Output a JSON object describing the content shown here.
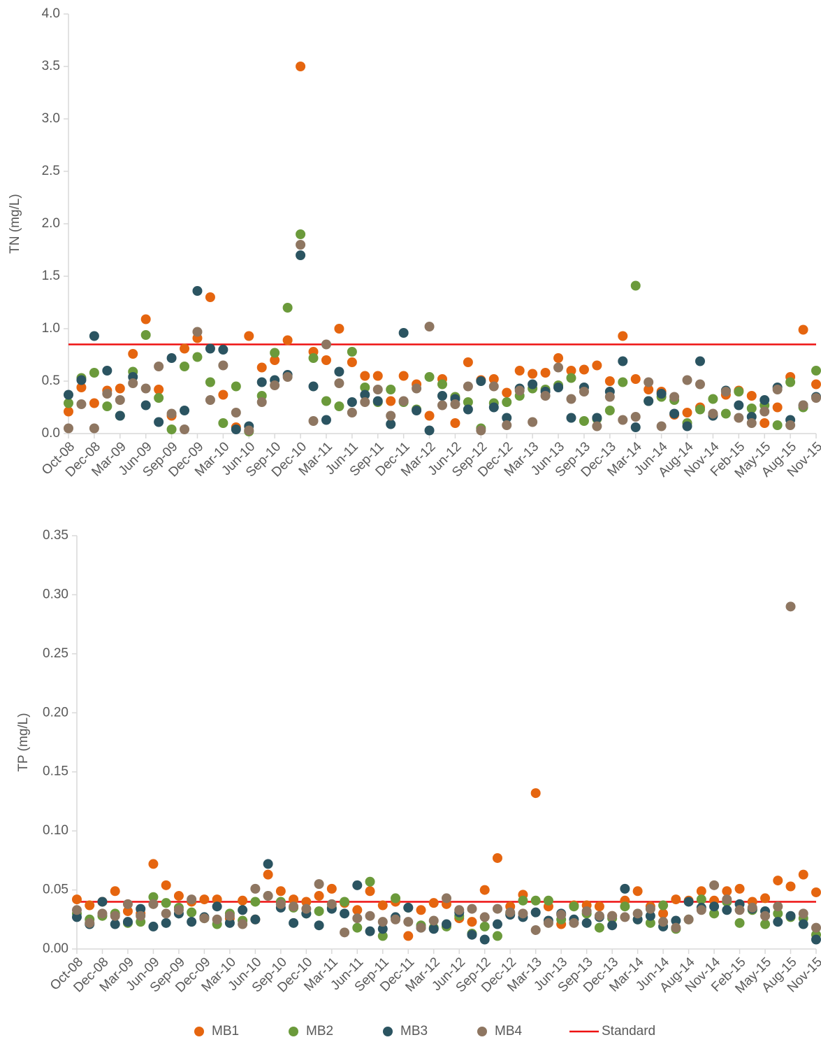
{
  "chart_data": [
    {
      "type": "scatter",
      "y_label": "TN (mg/L)",
      "categories": [
        "Oct-08",
        null,
        "Dec-08",
        null,
        "Mar-09",
        null,
        "Jun-09",
        null,
        "Sep-09",
        null,
        "Dec-09",
        null,
        "Mar-10",
        null,
        "Jun-10",
        null,
        "Sep-10",
        null,
        "Dec-10",
        null,
        "Mar-11",
        null,
        "Jun-11",
        null,
        "Sep-11",
        null,
        "Dec-11",
        null,
        "Mar-12",
        null,
        "Jun-12",
        null,
        "Sep-12",
        null,
        "Dec-12",
        null,
        "Mar-13",
        null,
        "Jun-13",
        null,
        "Sep-13",
        null,
        "Dec-13",
        null,
        "Mar-14",
        null,
        "Jun-14",
        null,
        "Aug-14",
        null,
        "Nov-14",
        null,
        "Feb-15",
        null,
        "May-15",
        null,
        "Aug-15",
        null,
        "Nov-15"
      ],
      "ylim": [
        0,
        4
      ],
      "yticks": [
        {
          "value": 0,
          "label": "0.0"
        },
        0.5,
        {
          "value": 1,
          "label": "1.0"
        },
        1.5,
        {
          "value": 2,
          "label": "2.0"
        },
        2.5,
        {
          "value": 3,
          "label": "3.0"
        },
        3.5,
        {
          "value": 4,
          "label": "4.0"
        }
      ],
      "standard": {
        "name": "Standard",
        "value": 0.85,
        "color": "#ee1111"
      },
      "series": [
        {
          "name": "MB1",
          "color": "#e5650f",
          "values": [
            0.21,
            0.44,
            0.29,
            0.41,
            0.43,
            0.76,
            1.09,
            0.42,
            0.17,
            0.81,
            0.91,
            1.3,
            0.37,
            0.06,
            0.93,
            0.63,
            0.7,
            0.89,
            3.5,
            0.78,
            0.7,
            1.0,
            0.68,
            0.55,
            0.55,
            0.31,
            0.55,
            0.47,
            0.17,
            0.52,
            0.1,
            0.68,
            0.51,
            0.52,
            0.39,
            0.6,
            0.57,
            0.58,
            0.72,
            0.6,
            0.61,
            0.65,
            0.5,
            0.93,
            0.52,
            0.42,
            0.4,
            0.18,
            0.2,
            0.25,
            0.18,
            0.37,
            0.41,
            0.36,
            0.1,
            0.25,
            0.54,
            0.99,
            0.47
          ]
        },
        {
          "name": "MB2",
          "color": "#6b9a3b",
          "values": [
            0.29,
            0.53,
            0.58,
            0.26,
            0.17,
            0.59,
            0.94,
            0.34,
            0.04,
            0.64,
            0.73,
            0.49,
            0.1,
            0.45,
            0.02,
            0.36,
            0.77,
            1.2,
            1.9,
            0.72,
            0.31,
            0.26,
            0.78,
            0.44,
            0.3,
            0.42,
            0.3,
            0.23,
            0.54,
            0.47,
            0.35,
            0.3,
            0.05,
            0.29,
            0.3,
            0.36,
            0.43,
            0.42,
            0.46,
            0.53,
            0.12,
            0.14,
            0.22,
            0.49,
            1.41,
            0.31,
            0.35,
            0.32,
            0.1,
            0.23,
            0.33,
            0.19,
            0.4,
            0.24,
            0.27,
            0.08,
            0.49,
            0.25,
            0.6
          ]
        },
        {
          "name": "MB3",
          "color": "#2b5461",
          "values": [
            0.37,
            0.51,
            0.93,
            0.6,
            0.17,
            0.54,
            0.27,
            0.11,
            0.72,
            0.22,
            1.36,
            0.81,
            0.8,
            0.04,
            0.07,
            0.49,
            0.51,
            0.56,
            1.7,
            0.45,
            0.13,
            0.59,
            0.3,
            0.37,
            0.31,
            0.09,
            0.96,
            0.22,
            0.03,
            0.36,
            0.33,
            0.23,
            0.5,
            0.25,
            0.15,
            0.43,
            0.47,
            0.4,
            0.44,
            0.15,
            0.44,
            0.15,
            0.4,
            0.69,
            0.06,
            0.31,
            0.38,
            0.19,
            0.07,
            0.69,
            0.17,
            0.41,
            0.27,
            0.16,
            0.32,
            0.44,
            0.13,
            0.27,
            0.35
          ]
        },
        {
          "name": "MB4",
          "color": "#8e7661",
          "values": [
            0.05,
            0.28,
            0.05,
            0.38,
            0.32,
            0.48,
            0.43,
            0.64,
            0.19,
            0.04,
            0.97,
            0.32,
            0.65,
            0.2,
            0.03,
            0.3,
            0.46,
            0.54,
            1.8,
            0.12,
            0.85,
            0.48,
            0.2,
            0.3,
            0.42,
            0.17,
            0.31,
            0.43,
            1.02,
            0.27,
            0.28,
            0.45,
            0.03,
            0.45,
            0.08,
            0.41,
            0.11,
            0.36,
            0.63,
            0.33,
            0.4,
            0.07,
            0.35,
            0.13,
            0.16,
            0.49,
            0.07,
            0.35,
            0.51,
            0.47,
            0.19,
            0.4,
            0.15,
            0.1,
            0.21,
            0.42,
            0.08,
            0.27,
            0.34
          ]
        }
      ]
    },
    {
      "type": "scatter",
      "y_label": "TP (mg/L)",
      "categories": [
        "Oct-08",
        null,
        "Dec-08",
        null,
        "Mar-09",
        null,
        "Jun-09",
        null,
        "Sep-09",
        null,
        "Dec-09",
        null,
        "Mar-10",
        null,
        "Jun-10",
        null,
        "Sep-10",
        null,
        "Dec-10",
        null,
        "Mar-11",
        null,
        "Jun-11",
        null,
        "Sep-11",
        null,
        "Dec-11",
        null,
        "Mar-12",
        null,
        "Jun-12",
        null,
        "Sep-12",
        null,
        "Dec-12",
        null,
        "Mar-13",
        null,
        "Jun-13",
        null,
        "Sep-13",
        null,
        "Dec-13",
        null,
        "Mar-14",
        null,
        "Jun-14",
        null,
        "Aug-14",
        null,
        "Nov-14",
        null,
        "Feb-15",
        null,
        "May-15",
        null,
        "Aug-15",
        null,
        "Nov-15"
      ],
      "ylim": [
        0,
        0.35
      ],
      "yticks": [
        {
          "value": 0,
          "label": "0.00"
        },
        0.05,
        {
          "value": 0.1,
          "label": "0.10"
        },
        0.15,
        {
          "value": 0.2,
          "label": "0.20"
        },
        0.25,
        {
          "value": 0.3,
          "label": "0.30"
        },
        0.35
      ],
      "standard": {
        "name": "Standard",
        "value": 0.04,
        "color": "#ee1111"
      },
      "series": [
        {
          "name": "MB1",
          "color": "#e5650f",
          "values": [
            0.042,
            0.037,
            0.04,
            0.049,
            0.032,
            0.03,
            0.072,
            0.054,
            0.045,
            0.04,
            0.042,
            0.042,
            0.026,
            0.041,
            0.025,
            0.063,
            0.049,
            0.042,
            0.04,
            0.045,
            0.051,
            0.039,
            0.033,
            0.049,
            0.037,
            0.04,
            0.011,
            0.033,
            0.039,
            0.038,
            0.026,
            0.023,
            0.05,
            0.077,
            0.036,
            0.046,
            0.132,
            0.036,
            0.021,
            0.037,
            0.037,
            0.036,
            0.028,
            0.041,
            0.049,
            0.036,
            0.03,
            0.042,
            0.041,
            0.049,
            0.041,
            0.049,
            0.051,
            0.04,
            0.043,
            0.058,
            0.053,
            0.063,
            0.048
          ]
        },
        {
          "name": "MB2",
          "color": "#6b9a3b",
          "values": [
            0.03,
            0.025,
            0.028,
            0.03,
            0.022,
            0.023,
            0.044,
            0.039,
            0.035,
            0.031,
            0.026,
            0.021,
            0.03,
            0.024,
            0.04,
            0.045,
            0.04,
            0.035,
            0.03,
            0.032,
            0.035,
            0.04,
            0.018,
            0.057,
            0.011,
            0.043,
            0.035,
            0.02,
            0.018,
            0.019,
            0.028,
            0.013,
            0.019,
            0.011,
            0.03,
            0.041,
            0.041,
            0.041,
            0.025,
            0.036,
            0.03,
            0.018,
            0.026,
            0.036,
            0.025,
            0.022,
            0.037,
            0.017,
            0.025,
            0.042,
            0.03,
            0.04,
            0.022,
            0.033,
            0.021,
            0.03,
            0.027,
            0.026,
            0.012
          ]
        },
        {
          "name": "MB3",
          "color": "#2b5461",
          "values": [
            0.027,
            0.021,
            0.04,
            0.021,
            0.023,
            0.034,
            0.019,
            0.022,
            0.03,
            0.023,
            0.027,
            0.036,
            0.022,
            0.033,
            0.025,
            0.072,
            0.035,
            0.022,
            0.03,
            0.02,
            0.034,
            0.03,
            0.054,
            0.015,
            0.017,
            0.027,
            0.035,
            0.018,
            0.017,
            0.021,
            0.031,
            0.012,
            0.008,
            0.021,
            0.029,
            0.027,
            0.031,
            0.024,
            0.03,
            0.025,
            0.022,
            0.027,
            0.02,
            0.051,
            0.025,
            0.028,
            0.019,
            0.024,
            0.04,
            0.035,
            0.036,
            0.033,
            0.038,
            0.034,
            0.032,
            0.023,
            0.028,
            0.021,
            0.008
          ]
        },
        {
          "name": "MB4",
          "color": "#8e7661",
          "values": [
            0.033,
            0.022,
            0.03,
            0.028,
            0.038,
            0.028,
            0.038,
            0.03,
            0.033,
            0.042,
            0.026,
            0.025,
            0.028,
            0.021,
            0.051,
            0.045,
            0.038,
            0.036,
            0.034,
            0.055,
            0.038,
            0.014,
            0.026,
            0.028,
            0.023,
            0.025,
            0.023,
            0.018,
            0.024,
            0.043,
            0.033,
            0.034,
            0.027,
            0.034,
            0.031,
            0.03,
            0.016,
            0.022,
            0.029,
            0.022,
            0.032,
            0.028,
            0.028,
            0.027,
            0.03,
            0.034,
            0.023,
            0.018,
            0.025,
            0.033,
            0.054,
            0.042,
            0.033,
            0.035,
            0.028,
            0.036,
            0.29,
            0.03,
            0.018
          ]
        }
      ]
    }
  ]
}
